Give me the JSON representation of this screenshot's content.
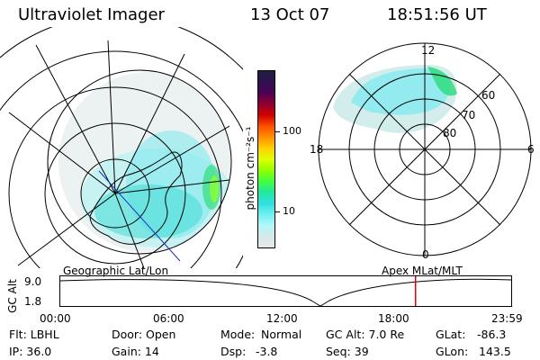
{
  "header": {
    "instrument": "Ultraviolet Imager",
    "date": "13 Oct 07",
    "time": "18:51:56 UT"
  },
  "colorbar": {
    "unit_label": "photon cm⁻²s⁻¹",
    "ticks": [
      "100",
      "10"
    ],
    "scale": "log",
    "colors": [
      "#202040",
      "#301050",
      "#500050",
      "#900030",
      "#d00000",
      "#ff5000",
      "#ff9000",
      "#ffd000",
      "#e0ff00",
      "#90ff00",
      "#40ff40",
      "#20e8a0",
      "#30e0e0",
      "#70f0f0",
      "#b0f8f8",
      "#d8e8e8",
      "#e8e8e8"
    ]
  },
  "polar_plot": {
    "mlt_labels": {
      "top": "12",
      "left": "18",
      "right": "6",
      "bottom": "0"
    },
    "mlat_labels": [
      "60",
      "70",
      "80"
    ]
  },
  "timeline": {
    "left_label": "Geographic Lat/Lon",
    "right_label": "Apex MLat/MLT",
    "axis_title": "GC Alt",
    "y_ticks": [
      "9.0",
      "1.8"
    ],
    "x_ticks": [
      "00:00",
      "06:00",
      "12:00",
      "18:00",
      "23:59"
    ],
    "current_time_hours": 18.87,
    "marker_color": "#e00000"
  },
  "status": {
    "filter": "Flt: LBHL",
    "door": "Door: Open",
    "mode_label": "Mode:",
    "mode_value": "Normal",
    "gc_alt": "GC Alt: 7.0 Re",
    "glat_label": "GLat:",
    "glat_value": "-86.3",
    "ip": "IP: 36.0",
    "gain": "Gain: 14",
    "dsp_label": "Dsp:",
    "dsp_value": "-3.8",
    "seq": "Seq: 39",
    "glon_label": "GLon:",
    "glon_value": "143.5"
  }
}
